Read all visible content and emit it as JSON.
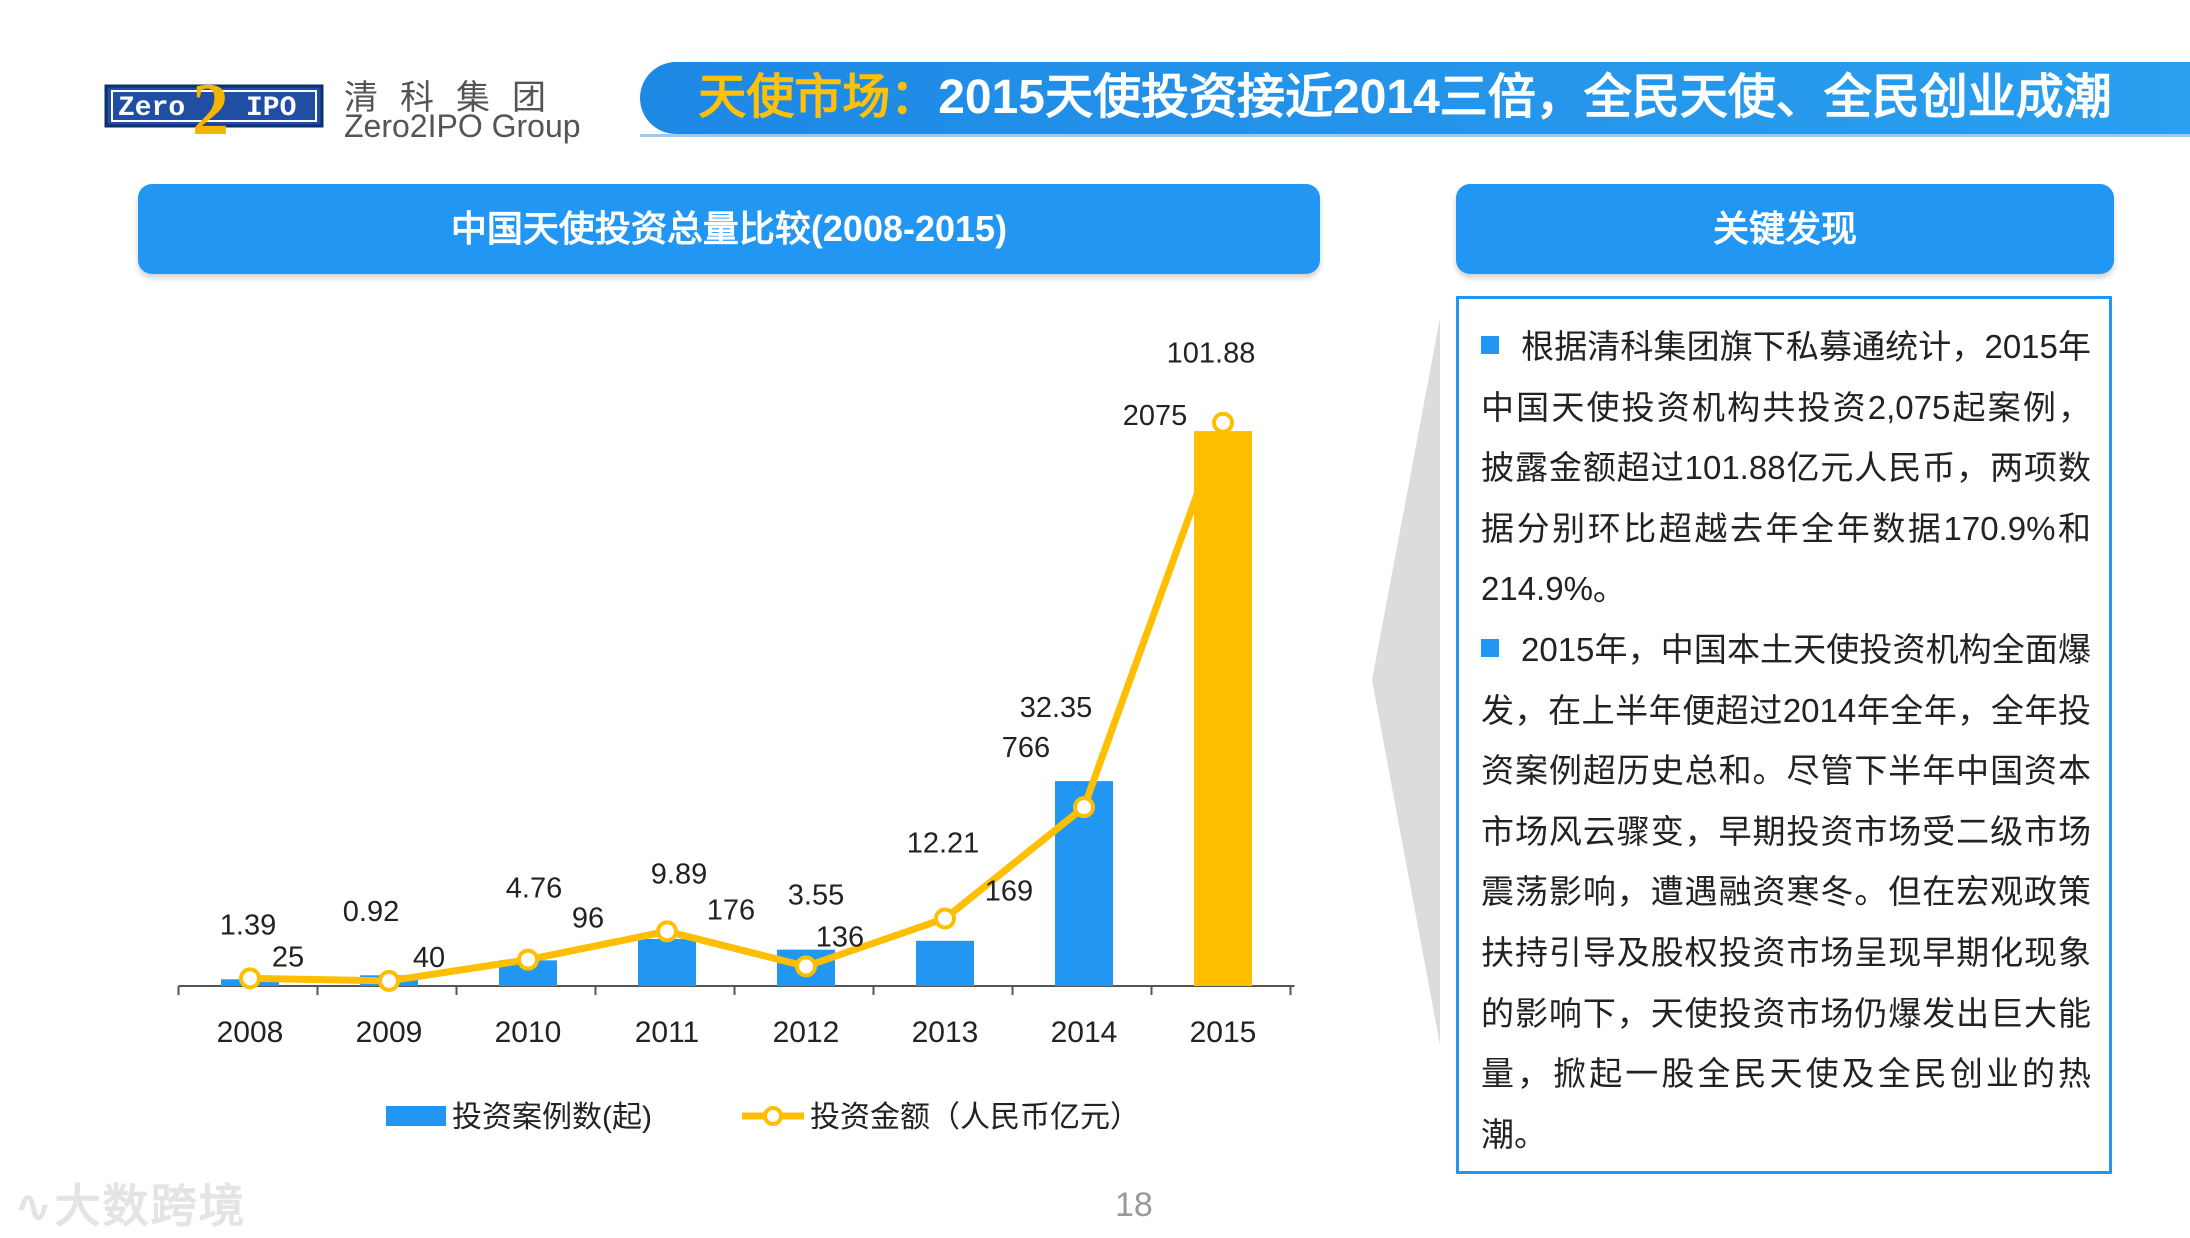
{
  "header": {
    "logo_left": "Zero",
    "logo_mid": "2",
    "logo_right": "IPO",
    "brand_cn": "清科集团",
    "brand_en": "Zero2IPO Group",
    "title_highlight": "天使市场：",
    "title_rest": "2015天使投资接近2014三倍，全民天使、全民创业成潮"
  },
  "chart_panel": {
    "heading": "中国天使投资总量比较(2008-2015)"
  },
  "chart_data": {
    "type": "bar",
    "title": "中国天使投资总量比较(2008-2015)",
    "categories": [
      "2008",
      "2009",
      "2010",
      "2011",
      "2012",
      "2013",
      "2014",
      "2015"
    ],
    "series": [
      {
        "name": "投资案例数(起)",
        "kind": "bar",
        "values": [
          25,
          40,
          96,
          176,
          136,
          169,
          766,
          2075
        ]
      },
      {
        "name": "投资金额（人民币亿元）",
        "kind": "line",
        "values": [
          1.39,
          0.92,
          4.76,
          9.89,
          3.55,
          12.21,
          32.35,
          101.88
        ]
      }
    ],
    "bar_ylim": [
      0,
      2150
    ],
    "line_ylim": [
      0,
      104
    ],
    "legend_position": "bottom",
    "grid": false
  },
  "colors": {
    "bar": "#2196f3",
    "bar_highlight": "#ffbf00",
    "line": "#ffbf00",
    "header_blue": "#1e88e5",
    "title_yellow": "#ffc107"
  },
  "findings": {
    "heading": "关键发现",
    "items": [
      "根据清科集团旗下私募通统计，2015年中国天使投资机构共投资2,075起案例，披露金额超过101.88亿元人民币，两项数据分别环比超越去年全年数据170.9%和214.9%。",
      "2015年，中国本土天使投资机构全面爆发，在上半年便超过2014年全年，全年投资案例超历史总和。尽管下半年中国资本市场风云骤变，早期投资市场受二级市场震荡影响，遭遇融资寒冬。但在宏观政策扶持引导及股权投资市场呈现早期化现象的影响下，天使投资市场仍爆发出巨大能量，掀起一股全民天使及全民创业的热潮。"
    ]
  },
  "footer": {
    "page_number": "18",
    "watermark": "大数跨境"
  }
}
